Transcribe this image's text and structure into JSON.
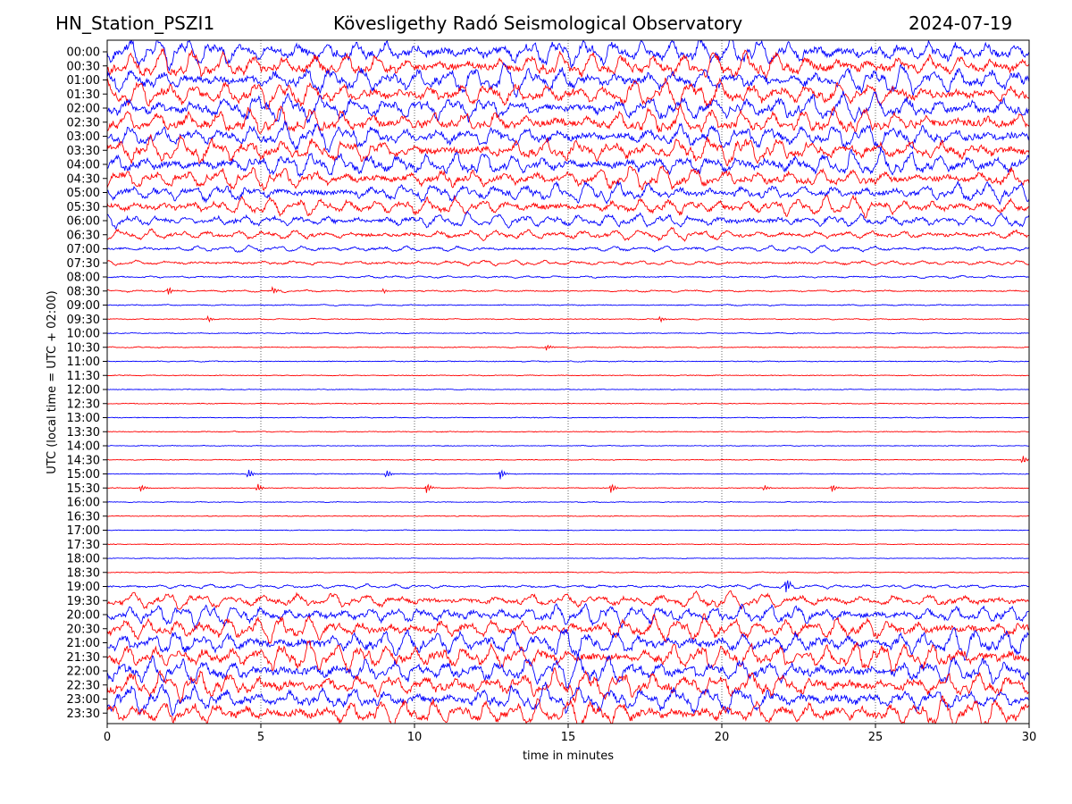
{
  "header": {
    "station": "HN_Station_PSZI1",
    "observatory": "Kövesligethy Radó Seismological Observatory",
    "date": "2024-07-19"
  },
  "chart_data": {
    "type": "line",
    "title": "Kövesligethy Radó Seismological Observatory",
    "xlabel": "time in minutes",
    "ylabel": "UTC (local time = UTC + 02:00)",
    "xlim": [
      0,
      30
    ],
    "xticks": [
      0,
      5,
      10,
      15,
      20,
      25,
      30
    ],
    "grid_x": true,
    "colors": [
      "#0000ff",
      "#ff0000"
    ],
    "rows": [
      "00:00",
      "00:30",
      "01:00",
      "01:30",
      "02:00",
      "02:30",
      "03:00",
      "03:30",
      "04:00",
      "04:30",
      "05:00",
      "05:30",
      "06:00",
      "06:30",
      "07:00",
      "07:30",
      "08:00",
      "08:30",
      "09:00",
      "09:30",
      "10:00",
      "10:30",
      "11:00",
      "11:30",
      "12:00",
      "12:30",
      "13:00",
      "13:30",
      "14:00",
      "14:30",
      "15:00",
      "15:30",
      "16:00",
      "16:30",
      "17:00",
      "17:30",
      "18:00",
      "18:30",
      "19:00",
      "19:30",
      "20:00",
      "20:30",
      "21:00",
      "21:30",
      "22:00",
      "22:30",
      "23:00",
      "23:30"
    ],
    "noise_level": [
      1.0,
      1.0,
      1.0,
      1.0,
      0.95,
      0.95,
      0.9,
      0.9,
      0.85,
      0.8,
      0.7,
      0.65,
      0.55,
      0.4,
      0.22,
      0.18,
      0.08,
      0.07,
      0.04,
      0.035,
      0.03,
      0.03,
      0.03,
      0.025,
      0.02,
      0.02,
      0.02,
      0.02,
      0.02,
      0.02,
      0.02,
      0.02,
      0.02,
      0.015,
      0.015,
      0.015,
      0.015,
      0.03,
      0.15,
      0.55,
      0.75,
      0.85,
      0.95,
      1.0,
      1.0,
      1.0,
      1.0,
      1.0
    ],
    "events": [
      {
        "row": "15:00",
        "minute": 4.6,
        "amplitude": 0.6
      },
      {
        "row": "15:00",
        "minute": 9.1,
        "amplitude": 0.5
      },
      {
        "row": "15:00",
        "minute": 12.8,
        "amplitude": 0.7
      },
      {
        "row": "15:30",
        "minute": 1.1,
        "amplitude": 0.5
      },
      {
        "row": "15:30",
        "minute": 4.9,
        "amplitude": 0.5
      },
      {
        "row": "15:30",
        "minute": 10.4,
        "amplitude": 0.7
      },
      {
        "row": "15:30",
        "minute": 16.4,
        "amplitude": 0.6
      },
      {
        "row": "15:30",
        "minute": 21.4,
        "amplitude": 0.4
      },
      {
        "row": "15:30",
        "minute": 23.6,
        "amplitude": 0.5
      },
      {
        "row": "14:30",
        "minute": 29.8,
        "amplitude": 0.5
      },
      {
        "row": "10:30",
        "minute": 14.3,
        "amplitude": 0.4
      },
      {
        "row": "08:30",
        "minute": 2.0,
        "amplitude": 0.5
      },
      {
        "row": "08:30",
        "minute": 5.4,
        "amplitude": 0.5
      },
      {
        "row": "08:30",
        "minute": 9.0,
        "amplitude": 0.3
      },
      {
        "row": "09:30",
        "minute": 3.3,
        "amplitude": 0.4
      },
      {
        "row": "09:30",
        "minute": 18.0,
        "amplitude": 0.4
      },
      {
        "row": "19:00",
        "minute": 22.1,
        "amplitude": 1.0
      }
    ]
  }
}
